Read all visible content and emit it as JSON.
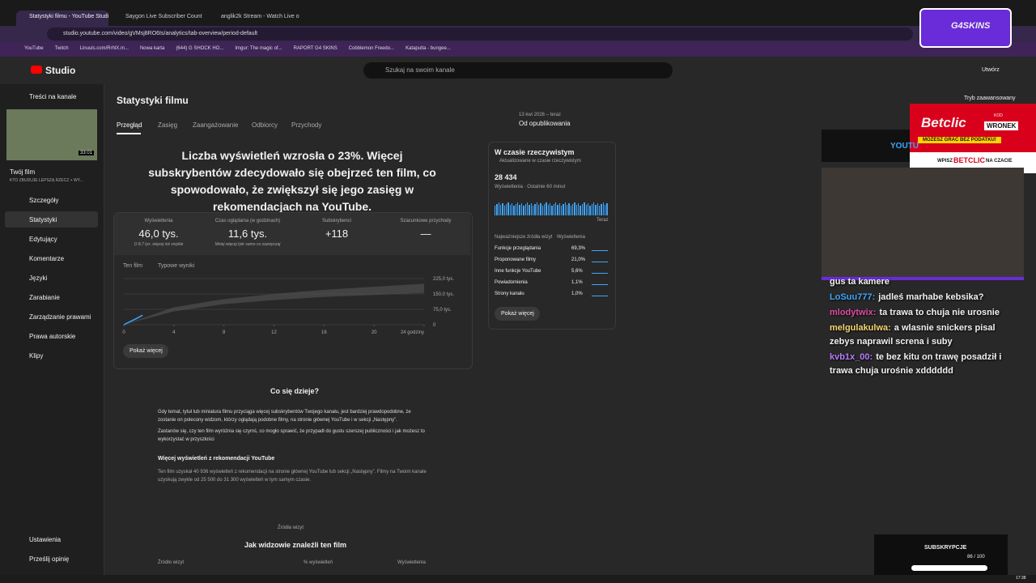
{
  "browser": {
    "tabs": [
      "Statystyki filmu - YouTube Studi",
      "Saygon Live Subscriber Count",
      "anglik2k Stream - Watch Live o"
    ],
    "url": "studio.youtube.com/video/gVMsj8RO6Is/analytics/tab-overview/period-default",
    "bookmarks": [
      "YouTube",
      "Twitch",
      "Linuuls.com/RrhlX.m...",
      "Nowa karta",
      "(644) G SHOCK HO...",
      "Imgur: The magic of...",
      "RAPORT G4 SKINS",
      "Cobblemon Freedo...",
      "Katapulta - bungee..."
    ],
    "logo": "G4SKINS"
  },
  "header": {
    "brand": "Studio",
    "search": "Szukaj na swoim kanale",
    "create": "Utwórz",
    "advanced": "Tryb zaawansowany"
  },
  "sidebar": {
    "back": "Treści na kanale",
    "duration": "33:01",
    "your_video": "Twój film",
    "video_title": "KTO ZBUDUJE LEPSZĄ RZECZ + WY...",
    "nav": [
      "Szczegóły",
      "Statystyki",
      "Edytujący",
      "Komentarze",
      "Języki",
      "Zarabianie",
      "Zarządzanie prawami",
      "Prawa autorskie",
      "Klipy"
    ],
    "bottom": [
      "Ustawienia",
      "Prześlij opinię"
    ]
  },
  "main": {
    "title": "Statystyki filmu",
    "tabs": [
      "Przegląd",
      "Zasięg",
      "Zaangażowanie",
      "Odbiorcy",
      "Przychody"
    ],
    "date_range": "13 kwi 2026 – teraz",
    "date_label": "Od opublikowania",
    "headline": "Liczba wyświetleń wzrosła o 23%. Więcej subskrybentów zdecydowało się obejrzeć ten film, co spowodowało, że zwiększył się jego zasięg w rekomendacjach na YouTube.",
    "metrics": [
      {
        "label": "Wyświetlenia",
        "value": "46,0 tys.",
        "note": "O 8,7 tys. więcej niż zwykle"
      },
      {
        "label": "Czas oglądania (w godzinach)",
        "value": "11,6 tys.",
        "note": "Mniej więcej tyle samo co zazwyczaj"
      },
      {
        "label": "Subskrybenci",
        "value": "+118"
      },
      {
        "label": "Szacunkowe przychody",
        "value": "—"
      }
    ],
    "views_chart": {
      "type": "line",
      "series": [
        {
          "name": "Ten film",
          "color": "#3ea6ff",
          "x": [
            0,
            0.5,
            1,
            1.5
          ],
          "values": [
            0,
            15000,
            30000,
            46000
          ]
        }
      ],
      "typical": {
        "name": "Typowe wyniki",
        "color": "#555555",
        "x": [
          0,
          4,
          8,
          12,
          16,
          20,
          24
        ],
        "low": [
          0,
          65000,
          100000,
          120000,
          135000,
          145000,
          155000
        ],
        "high": [
          0,
          85000,
          125000,
          150000,
          170000,
          185000,
          200000
        ]
      },
      "xlim": [
        0,
        24
      ],
      "ylim": [
        0,
        225000
      ],
      "xticks": [
        0,
        4,
        8,
        12,
        16,
        20,
        {
          "value": 24,
          "label": "24 godziny"
        }
      ],
      "yticks": [
        0,
        {
          "value": 75000,
          "label": "75,0 tys."
        },
        {
          "value": 150000,
          "label": "150,0 tys."
        },
        {
          "value": 225000,
          "label": "225,0 tys."
        }
      ]
    },
    "show_more": "Pokaż więcej",
    "whats_happening": "Co się dzieje?",
    "paragraphs": [
      "Gdy temat, tytuł lub miniatura filmu przyciąga więcej subskrybentów Twojego kanału, jest bardziej prawdopodobne, że zostanie on polecony widzom, którzy oglądają podobne filmy, na stronie głównej YouTube i w sekcji „Następny”.",
      "Zastanów się, czy ten film wyróżnia się czymś, co mogło sprawić, że przypadł do gustu szerszej publiczności i jak możesz to wykorzystać w przyszłości"
    ],
    "rec_heading": "Więcej wyświetleń z rekomendacji YouTube",
    "rec_text": "Ten film uzyskał 40 936 wyświetleń z rekomendacji na stronie głównej YouTube lub sekcji „Następny”. Filmy na Twoim kanale uzyskują zwykle od 25 500 do 31 300 wyświetleń w tym samym czasie.",
    "sources_label": "Źródła wizyt",
    "found_heading": "Jak widzowie znaleźli ten film",
    "table_headers": [
      "Źródło wizyt",
      "% wyświetleń",
      "Wyświetlenia"
    ]
  },
  "realtime": {
    "title": "W czasie rzeczywistym",
    "subtitle": "Aktualizowane w czasie rzeczywistym",
    "count": "28 434",
    "period": "Wyświetlenia · Ostatnie 60 minut",
    "now": "Teraz",
    "sources_header": [
      "Najważniejsze źródła wizyt",
      "Wyświetlenia"
    ],
    "sources": [
      {
        "name": "Funkcje przeglądania",
        "value": "69,3%"
      },
      {
        "name": "Proponowane filmy",
        "value": "21,0%"
      },
      {
        "name": "Inne funkcje YouTube",
        "value": "5,6%"
      },
      {
        "name": "Powiadomienia",
        "value": "1,1%"
      },
      {
        "name": "Strony kanału",
        "value": "1,0%"
      }
    ],
    "button": "Pokaż więcej"
  },
  "overlay": {
    "ad": [
      "Betclic",
      "KOD",
      "WRONEK",
      "MOŻESZ GRAĆ BEZ PODATKU!",
      "WPISZ",
      "BETCLIC",
      "NA CZACIE"
    ],
    "youtube": "YOUTU",
    "chat": [
      {
        "text": "gus ta kamere"
      },
      {
        "user": "LoSuu777:",
        "text": "jadleś marhabe kebsika?"
      },
      {
        "user": "mlodytwix:",
        "text": "ta trawa to chuja nie urosnie"
      },
      {
        "user": "melgulakulwa:",
        "text": "a wlasnie snickers pisal zebys naprawil screna i suby"
      },
      {
        "user": "kvb1x_00:",
        "text": "te bez kitu on trawę posadził i trawa chuja urośnie xdddddd"
      }
    ],
    "subs_label": "SUBSKRYPCJE",
    "subs_count": "86 / 100",
    "clock": "17:38"
  }
}
